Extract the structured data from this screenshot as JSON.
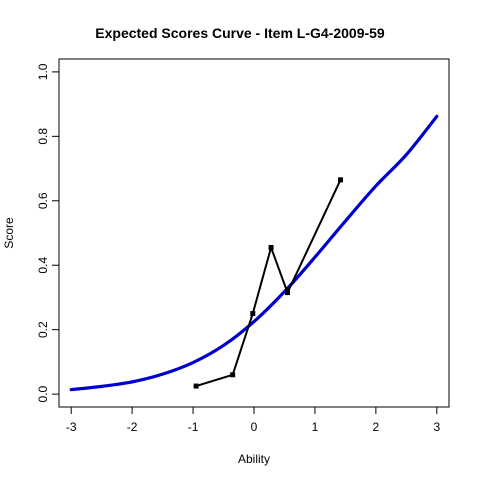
{
  "chart_data": {
    "type": "line",
    "title": "Expected Scores Curve - Item  L-G4-2009-59",
    "xlabel": "Ability",
    "ylabel": "Score",
    "xlim": [
      -3.2,
      3.2
    ],
    "ylim": [
      -0.04,
      1.04
    ],
    "x_ticks": [
      "-3",
      "-2",
      "-1",
      "0",
      "1",
      "2",
      "3"
    ],
    "y_ticks": [
      "0.0",
      "0.2",
      "0.4",
      "0.6",
      "0.8",
      "1.0"
    ],
    "grid": false,
    "series": [
      {
        "style": "smooth-curve",
        "color": "#0000cd",
        "x": [
          -3.0,
          -2.5,
          -2.0,
          -1.5,
          -1.0,
          -0.5,
          0.0,
          0.5,
          1.0,
          1.5,
          2.0,
          2.5,
          3.0
        ],
        "y": [
          0.014,
          0.024,
          0.038,
          0.062,
          0.098,
          0.151,
          0.225,
          0.318,
          0.425,
          0.537,
          0.646,
          0.743,
          0.862
        ]
      },
      {
        "style": "line-with-squares",
        "color": "#000000",
        "x": [
          -0.95,
          -0.35,
          -0.02,
          0.28,
          0.55,
          1.42
        ],
        "y": [
          0.025,
          0.06,
          0.25,
          0.455,
          0.315,
          0.665
        ]
      }
    ]
  }
}
